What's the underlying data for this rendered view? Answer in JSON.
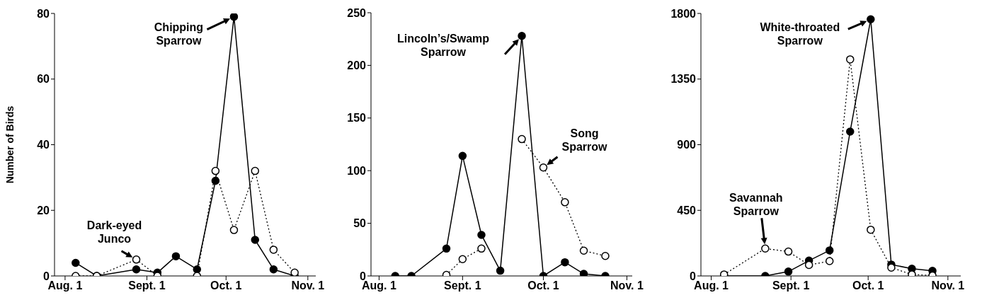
{
  "chart_data": [
    {
      "type": "line",
      "ylabel": "Number of Birds",
      "xlim": [
        "--07-28",
        "--11-04"
      ],
      "xticks": [
        {
          "value": "--08-01",
          "label": "Aug. 1"
        },
        {
          "value": "--09-01",
          "label": "Sept. 1"
        },
        {
          "value": "--10-01",
          "label": "Oct. 1"
        },
        {
          "value": "--11-01",
          "label": "Nov. 1"
        }
      ],
      "ylim": [
        0,
        80
      ],
      "yticks": [
        0,
        20,
        40,
        60,
        80
      ],
      "marker": "circle",
      "x": [
        "--08-05",
        "--08-13",
        "--08-28",
        "--09-05",
        "--09-12",
        "--09-20",
        "--09-27",
        "--10-04",
        "--10-12",
        "--10-19",
        "--10-27"
      ],
      "series": [
        {
          "color": "#000000",
          "line_style": "solid",
          "values": [
            4,
            0,
            2,
            1,
            6,
            2,
            29,
            79,
            11,
            2,
            0
          ]
        },
        {
          "color": "#000000",
          "line_style": "dotted",
          "values": [
            0,
            0,
            5,
            0,
            null,
            0,
            32,
            14,
            32,
            8,
            1
          ]
        }
      ],
      "annotations": [
        {
          "text": "Chipping\nSparrow",
          "x": "--10-04",
          "y": 79
        },
        {
          "text": "Dark-eyed\nJunco",
          "x": "--08-28",
          "y": 5
        }
      ]
    },
    {
      "type": "line",
      "xlim": [
        "--07-29",
        "--11-03"
      ],
      "xticks": [
        {
          "value": "--08-01",
          "label": "Aug. 1"
        },
        {
          "value": "--09-01",
          "label": "Sept. 1"
        },
        {
          "value": "--10-01",
          "label": "Oct. 1"
        },
        {
          "value": "--11-01",
          "label": "Nov. 1"
        }
      ],
      "ylim": [
        0,
        250
      ],
      "yticks": [
        0,
        50,
        100,
        150,
        200,
        250
      ],
      "marker": "circle",
      "x": [
        "--08-07",
        "--08-13",
        "--08-26",
        "--09-01",
        "--09-08",
        "--09-15",
        "--09-23",
        "--10-01",
        "--10-09",
        "--10-16",
        "--10-24"
      ],
      "series": [
        {
          "color": "#000000",
          "line_style": "solid",
          "values": [
            0,
            0,
            26,
            114,
            39,
            5,
            228,
            0,
            13,
            2,
            0
          ]
        },
        {
          "color": "#000000",
          "line_style": "dotted",
          "values": [
            null,
            null,
            1,
            16,
            26,
            null,
            130,
            103,
            70,
            24,
            19
          ]
        }
      ],
      "annotations": [
        {
          "text": "Lincoln’s/Swamp\nSparrow",
          "x": "--09-23",
          "y": 228
        },
        {
          "text": "Song\nSparrow",
          "x": "--10-01",
          "y": 103
        }
      ]
    },
    {
      "type": "line",
      "xlim": [
        "--07-28",
        "--11-06"
      ],
      "xticks": [
        {
          "value": "--08-01",
          "label": "Aug. 1"
        },
        {
          "value": "--09-01",
          "label": "Sept. 1"
        },
        {
          "value": "--10-01",
          "label": "Oct. 1"
        },
        {
          "value": "--11-01",
          "label": "Nov. 1"
        }
      ],
      "ylim": [
        0,
        1800
      ],
      "yticks": [
        0,
        450,
        900,
        1350,
        1800
      ],
      "marker": "circle",
      "x": [
        "--08-06",
        "--08-22",
        "--08-31",
        "--09-08",
        "--09-16",
        "--09-24",
        "--10-02",
        "--10-10",
        "--10-18",
        "--10-26"
      ],
      "series": [
        {
          "color": "#000000",
          "line_style": "solid",
          "values": [
            0,
            0,
            30,
            105,
            175,
            990,
            1760,
            78,
            50,
            35
          ]
        },
        {
          "color": "#000000",
          "line_style": "dotted",
          "values": [
            10,
            188,
            167,
            75,
            102,
            1485,
            317,
            57,
            10,
            3
          ]
        }
      ],
      "annotations": [
        {
          "text": "White-throated\nSparrow",
          "x": "--10-02",
          "y": 1760
        },
        {
          "text": "Savannah\nSparrow",
          "x": "--08-22",
          "y": 188
        }
      ]
    }
  ]
}
